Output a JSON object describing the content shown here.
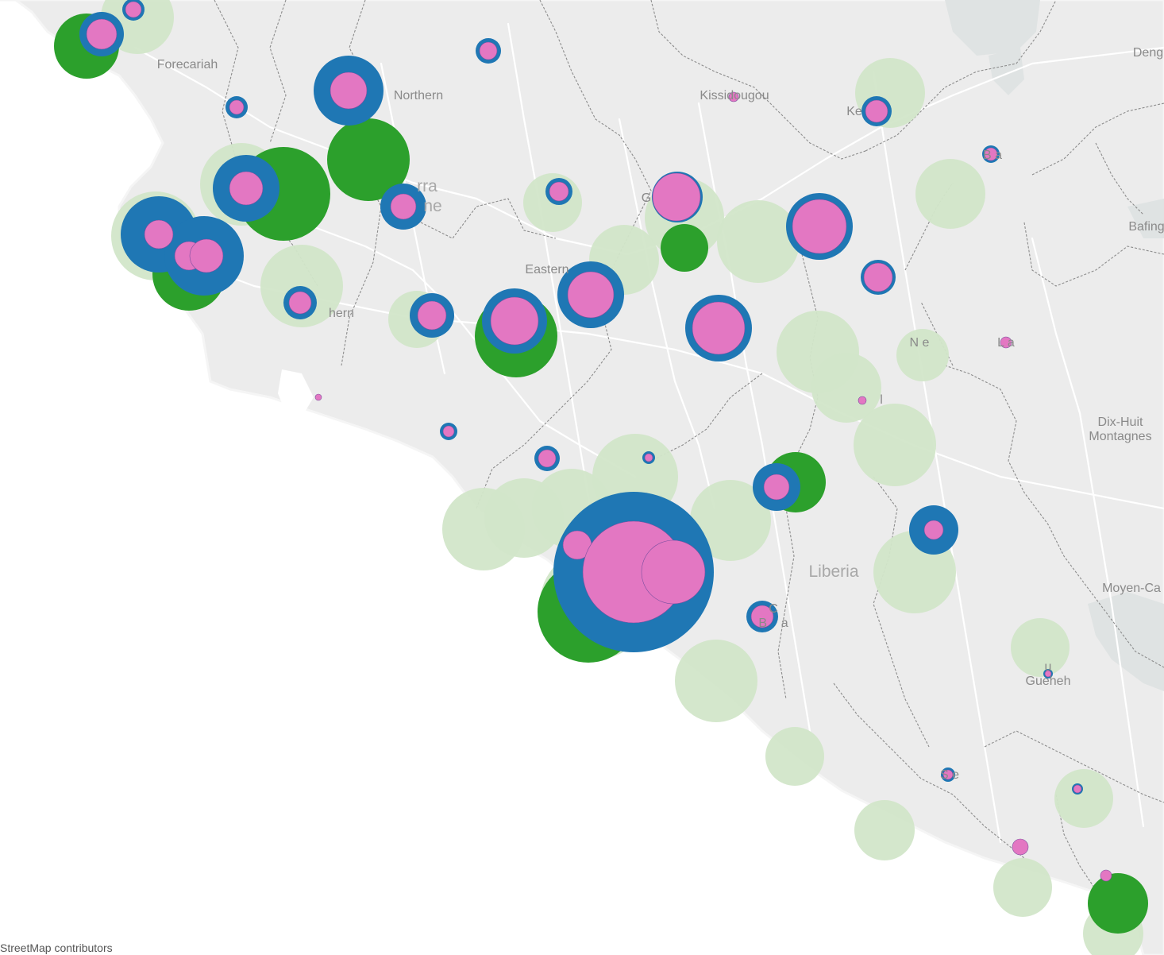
{
  "map": {
    "attribution": "StreetMap contributors",
    "colors": {
      "land": "#ececec",
      "water": "#dfe3e3",
      "sea": "#ffffff",
      "border": "#8c8c8c",
      "road": "#ffffff",
      "light_green": "#d2e6c9",
      "green": "#2ca02c",
      "blue": "#1f77b4",
      "pink": "#e377c2"
    },
    "place_labels": [
      {
        "id": "forecariah",
        "text": "Forecariah"
      },
      {
        "id": "northern",
        "text": "Northern"
      },
      {
        "id": "kissidougou",
        "text": "Kissidougou"
      },
      {
        "id": "keru",
        "text": "Ke"
      },
      {
        "id": "beyla",
        "text": "B     a"
      },
      {
        "id": "deng",
        "text": "Deng"
      },
      {
        "id": "bafing",
        "text": "Bafing"
      },
      {
        "id": "sierra",
        "text": "rra"
      },
      {
        "id": "leone",
        "text": "ne"
      },
      {
        "id": "eastern",
        "text": "Eastern"
      },
      {
        "id": "gueckedou",
        "text": "G"
      },
      {
        "id": "southern",
        "text": "hern"
      },
      {
        "id": "nzerekore",
        "text": "N        e"
      },
      {
        "id": "lola",
        "text": "L   a"
      },
      {
        "id": "lofa",
        "text": "l"
      },
      {
        "id": "dix_huit",
        "text": "Dix-Huit\nMontagnes"
      },
      {
        "id": "liberia",
        "text": "Liberia"
      },
      {
        "id": "moyen",
        "text": "Moyen-Ca"
      },
      {
        "id": "grand_bong",
        "text": "C\nB    a"
      },
      {
        "id": "guiglo",
        "text": "u\nGueheh"
      },
      {
        "id": "sinoe",
        "text": "S     e"
      }
    ]
  }
}
